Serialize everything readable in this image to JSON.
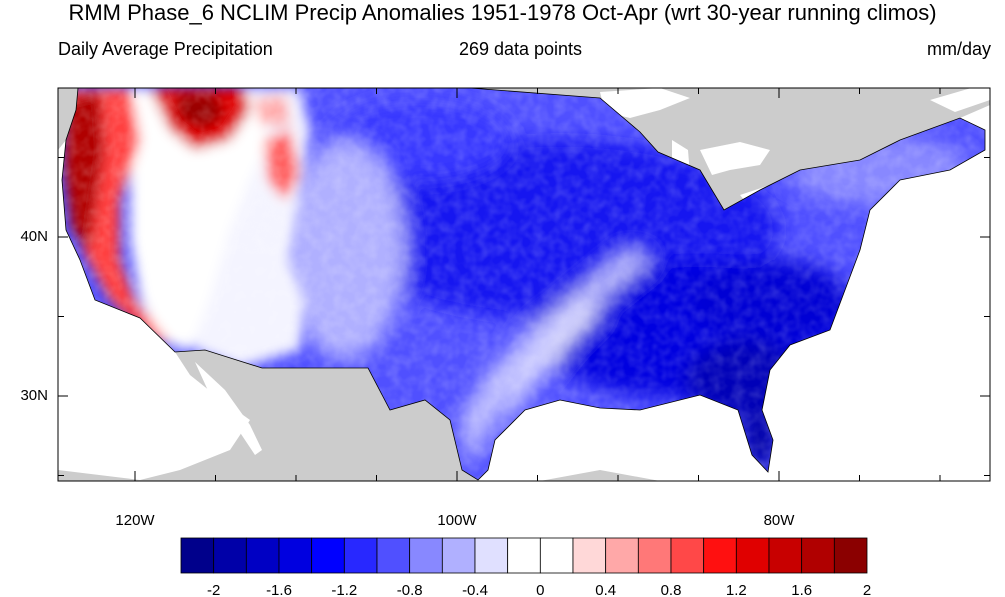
{
  "title": "RMM Phase_6 NCLIM Precip Anomalies 1951-1978 Oct-Apr (wrt 30-year running climos)",
  "subtitle_left": "Daily Average Precipitation",
  "subtitle_center": "269 data points",
  "subtitle_right": "mm/day",
  "map": {
    "region": "Contiguous United States",
    "lon_range": [
      -127,
      -65
    ],
    "lat_range": [
      24.5,
      50
    ],
    "land_color": "#cccccc",
    "ocean_color": "#ffffff",
    "lat_labels": [
      {
        "lat": 40,
        "text": "40N"
      },
      {
        "lat": 30,
        "text": "30N"
      }
    ],
    "lon_labels": [
      {
        "lon": -120,
        "text": "120W"
      },
      {
        "lon": -100,
        "text": "100W"
      },
      {
        "lon": -80,
        "text": "80W"
      }
    ],
    "field_summary": {
      "pacific_coast": "strong positive anomaly (up to about 2 mm/day)",
      "interior_west": "near zero",
      "plains_midwest_east": "negative anomaly (about -0.8 to -1.6 mm/day)",
      "southeast_gulf": "strongest negative anomaly (about -2 mm/day)",
      "south_texas_corridor": "near zero"
    }
  },
  "colorbar": {
    "colors": [
      "#00008b",
      "#0000a8",
      "#0000c4",
      "#0000e0",
      "#0000ff",
      "#2828ff",
      "#5050ff",
      "#8888ff",
      "#b0b0ff",
      "#e0e0ff",
      "#ffffff",
      "#ffffff",
      "#ffd8d8",
      "#ffa8a8",
      "#ff7878",
      "#ff4848",
      "#ff1010",
      "#e00000",
      "#c80000",
      "#b00000",
      "#8b0000"
    ],
    "labels": [
      "-2",
      "-1.6",
      "-1.2",
      "-0.8",
      "-0.4",
      "0",
      "0.4",
      "0.8",
      "1.2",
      "1.6",
      "2"
    ],
    "minor_labels": [
      "-2",
      "-1.6",
      "-1.2",
      "-0.8",
      "-0.4",
      "0",
      "0.4",
      "0.8",
      "1.2",
      "1.6",
      "2"
    ]
  }
}
